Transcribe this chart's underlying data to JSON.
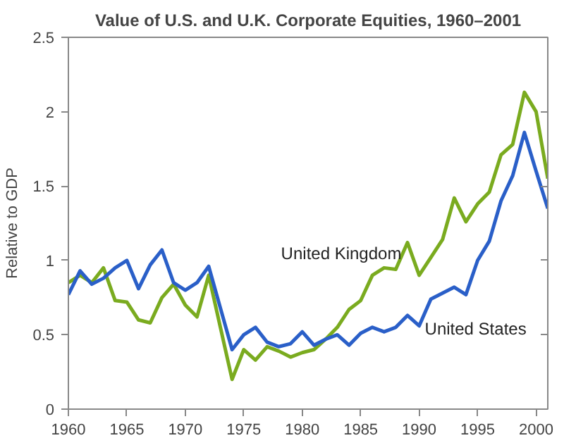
{
  "chart_data": {
    "type": "line",
    "title": "Value of U.S. and U.K. Corporate Equities, 1960–2001",
    "ylabel": "Relative to GDP",
    "x": [
      1960,
      1961,
      1962,
      1963,
      1964,
      1965,
      1966,
      1967,
      1968,
      1969,
      1970,
      1971,
      1972,
      1973,
      1974,
      1975,
      1976,
      1977,
      1978,
      1979,
      1980,
      1981,
      1982,
      1983,
      1984,
      1985,
      1986,
      1987,
      1988,
      1989,
      1990,
      1991,
      1992,
      1993,
      1994,
      1995,
      1996,
      1997,
      1998,
      1999,
      2000,
      2001
    ],
    "series": [
      {
        "name": "United Kingdom",
        "color": "#7aab1f",
        "values": [
          0.85,
          0.9,
          0.85,
          0.95,
          0.73,
          0.72,
          0.6,
          0.58,
          0.75,
          0.84,
          0.7,
          0.62,
          0.9,
          0.55,
          0.2,
          0.4,
          0.33,
          0.42,
          0.39,
          0.35,
          0.38,
          0.4,
          0.47,
          0.55,
          0.67,
          0.73,
          0.9,
          0.95,
          0.94,
          1.12,
          0.9,
          1.02,
          1.14,
          1.42,
          1.26,
          1.38,
          1.46,
          1.71,
          1.78,
          2.13,
          2.0,
          1.55
        ]
      },
      {
        "name": "United States",
        "color": "#2a5fc8",
        "values": [
          0.77,
          0.93,
          0.84,
          0.88,
          0.95,
          1.0,
          0.81,
          0.97,
          1.07,
          0.85,
          0.8,
          0.85,
          0.96,
          0.68,
          0.4,
          0.5,
          0.55,
          0.45,
          0.42,
          0.44,
          0.52,
          0.43,
          0.47,
          0.5,
          0.43,
          0.51,
          0.55,
          0.52,
          0.55,
          0.63,
          0.56,
          0.74,
          0.78,
          0.82,
          0.77,
          1.0,
          1.13,
          1.4,
          1.57,
          1.86,
          1.6,
          1.35
        ]
      }
    ],
    "xlim": [
      1960,
      2001
    ],
    "xticks": [
      1960,
      1965,
      1970,
      1975,
      1980,
      1985,
      1990,
      1995,
      2000
    ],
    "ylim": [
      0,
      2.5
    ],
    "yticks": [
      0,
      0.5,
      1,
      1.5,
      2,
      2.5
    ],
    "grid": false
  }
}
